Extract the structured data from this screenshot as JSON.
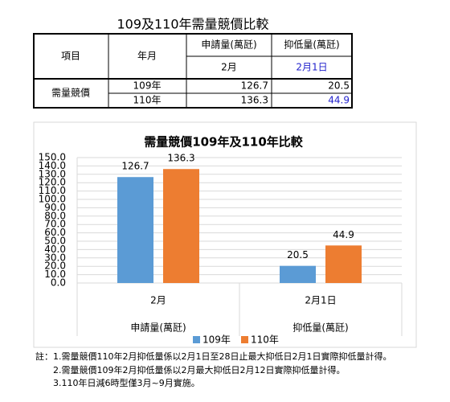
{
  "title": "109及110年需量競價比較",
  "table": {
    "headers": [
      "項目",
      "年月",
      "申請量(萬瓩)",
      "抑低量(萬瓩)"
    ],
    "subheaders": [
      "2月",
      "2月1日"
    ],
    "row_group": "需量競價",
    "rows": [
      [
        "109年",
        126.7,
        20.5
      ],
      [
        "110年",
        136.3,
        44.9
      ]
    ]
  },
  "chart_data": {
    "type": "bar",
    "title": "需量競價109年及110年比較",
    "categories": [
      "2月",
      "2月1日"
    ],
    "category_groups": [
      "申請量(萬瓩)",
      "抑低量(萬瓩)"
    ],
    "series": [
      {
        "name": "109年",
        "color": "#5b9bd5",
        "values": [
          126.7,
          20.5
        ]
      },
      {
        "name": "110年",
        "color": "#ed7d31",
        "values": [
          136.3,
          44.9
        ]
      }
    ],
    "ylim": [
      0,
      150
    ],
    "yticks": [
      {
        "value": 0,
        "label": "0.0"
      },
      {
        "value": 10,
        "label": "10.0"
      },
      {
        "value": 20,
        "label": "20.0"
      },
      {
        "value": 30,
        "label": "30.0"
      },
      {
        "value": 40,
        "label": "40.0"
      },
      {
        "value": 50,
        "label": "50.0"
      },
      {
        "value": 60,
        "label": "60.0"
      },
      {
        "value": 70,
        "label": "70.0"
      },
      {
        "value": 80,
        "label": "80.0"
      },
      {
        "value": 90,
        "label": "90.0"
      },
      {
        "value": 100,
        "label": "100.0"
      },
      {
        "value": 110,
        "label": "110.0"
      },
      {
        "value": 120,
        "label": "120.0"
      },
      {
        "value": 130,
        "label": "130.0"
      },
      {
        "value": 140,
        "label": "140.0"
      },
      {
        "value": 150,
        "label": "150.0"
      }
    ],
    "grid": true
  },
  "note_label": "註：",
  "notes": [
    "1.需量競價110年2月抑低量係以2月1日至28日止最大抑低日2月1日實際抑低量計得。",
    "2.需量競價109年2月抑低量係以2月最大抑低日2月12日實際抑低量計得。",
    "3.110年日減6時型僅3月~9月實施。"
  ]
}
